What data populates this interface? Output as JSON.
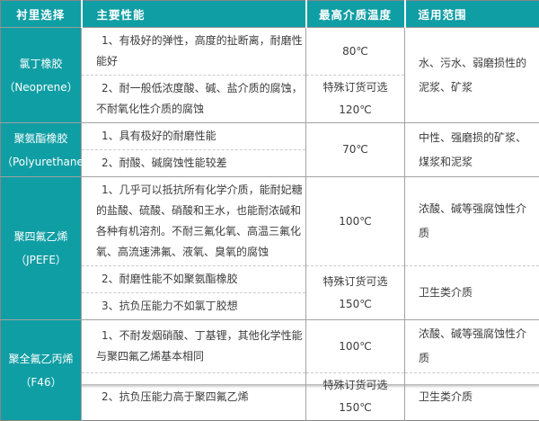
{
  "colors": {
    "header_bg": "#0f9ea4",
    "header_text": "#ffffff",
    "body_text": "#3c3c3c",
    "solid_border": "#a2a2a2",
    "dashed_border": "#cbcbcb"
  },
  "table": {
    "headers": [
      "衬里选择",
      "主要性能",
      "最高介质温度",
      "适用范围"
    ],
    "rows": [
      {
        "name": "氯丁橡胶",
        "en": "（Neoprene）",
        "perf1": "1、有极好的弹性，高度的扯断离，耐磨性能好",
        "temp1": "80℃",
        "perf2": "2、耐一般低浓度酸、碱、盐介质的腐蚀，不耐氧化性介质的腐蚀",
        "temp2a": "特殊订货可选",
        "temp2b": "120℃",
        "range": "水、污水、弱磨损性的泥浆、矿浆"
      },
      {
        "name": "聚氨酯橡胶",
        "en": "（Polyurethane）",
        "perf1": "1、具有极好的耐磨性能",
        "perf2": "2、耐酸、碱腐蚀性能较差",
        "temp": "70℃",
        "range": "中性、强磨损的矿浆、煤浆和泥浆"
      },
      {
        "name": "聚四氟乙烯",
        "en": "（JPEFE）",
        "perf1": "1、几乎可以抵抗所有化学介质，能耐妃糖的盐酸、硫酸、硝酸和王水，也能耐浓碱和各种有机溶剂。不耐三氟化氧、高温三氟化氧、高流速沸氟、液氧、臭氧的腐蚀",
        "temp1": "100℃",
        "range1": "浓酸、碱等强腐蚀性介质",
        "perf2": "2、耐磨性能不如聚氨酯橡胶",
        "perf3": "3、抗负压能力不如氯丁胶想",
        "temp2a": "特殊订货可选",
        "temp2b": "150℃",
        "range2": "卫生类介质"
      },
      {
        "name": "聚全氟乙丙烯",
        "en": "（F46）",
        "perf1": "1、不耐发烟硝酸、丁基锂，其他化学性能与聚四氟乙烯基本相同",
        "temp1": "100℃",
        "range1": "浓酸、碱等强腐蚀性介质",
        "perf2": "2、抗负压能力高于聚四氟乙烯",
        "temp2a": "特殊订货可选",
        "temp2b": "150℃",
        "range2": "卫生类介质"
      }
    ]
  }
}
